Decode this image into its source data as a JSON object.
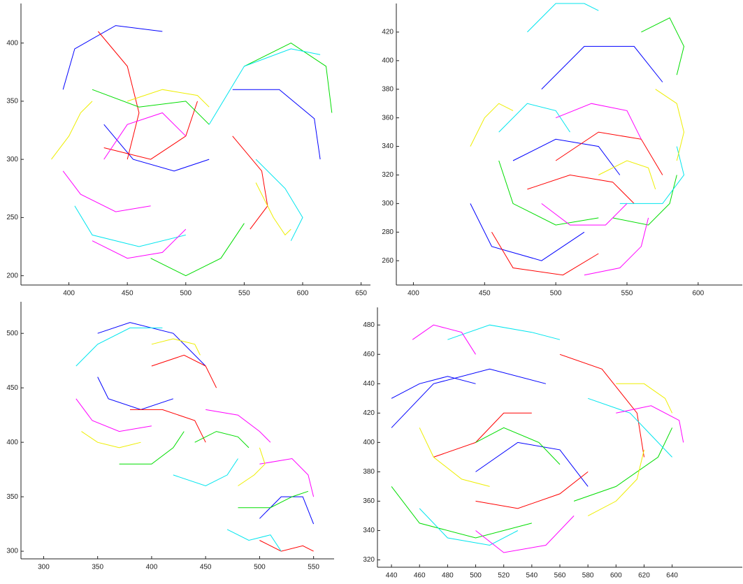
{
  "chart_data": [
    {
      "type": "line",
      "xlim": [
        359,
        658
      ],
      "ylim": [
        192,
        434
      ],
      "xticks": [
        400,
        450,
        500,
        550,
        600,
        650
      ],
      "yticks": [
        200,
        250,
        300,
        350,
        400
      ],
      "series": [
        {
          "color": "#0000ff",
          "x": [
            395,
            405,
            440,
            480,
            null,
            540,
            580,
            610,
            615,
            null,
            430,
            455,
            490,
            520
          ],
          "y": [
            360,
            395,
            415,
            410,
            null,
            360,
            360,
            335,
            300,
            null,
            330,
            300,
            290,
            300
          ]
        },
        {
          "color": "#ff0000",
          "x": [
            425,
            450,
            460,
            450,
            null,
            540,
            565,
            570,
            555,
            null,
            430,
            470,
            500,
            510
          ],
          "y": [
            410,
            380,
            340,
            300,
            null,
            320,
            290,
            260,
            240,
            null,
            310,
            300,
            320,
            350
          ]
        },
        {
          "color": "#00dd00",
          "x": [
            470,
            500,
            530,
            550,
            null,
            550,
            590,
            620,
            625,
            null,
            420,
            460,
            500,
            520
          ],
          "y": [
            215,
            200,
            215,
            245,
            null,
            380,
            400,
            380,
            340,
            null,
            360,
            345,
            350,
            330
          ]
        },
        {
          "color": "#00e5ee",
          "x": [
            405,
            420,
            460,
            500,
            null,
            520,
            550,
            590,
            615,
            null,
            560,
            585,
            600,
            590
          ],
          "y": [
            260,
            235,
            225,
            235,
            null,
            330,
            380,
            395,
            390,
            null,
            300,
            275,
            250,
            230
          ]
        },
        {
          "color": "#ff00ff",
          "x": [
            395,
            410,
            440,
            470,
            null,
            420,
            450,
            480,
            500,
            null,
            430,
            450,
            480,
            500
          ],
          "y": [
            290,
            270,
            255,
            260,
            null,
            230,
            215,
            220,
            240,
            null,
            300,
            330,
            340,
            320
          ]
        },
        {
          "color": "#eeee00",
          "x": [
            385,
            400,
            410,
            420,
            null,
            560,
            575,
            585,
            590,
            null,
            450,
            480,
            510,
            520
          ],
          "y": [
            300,
            320,
            340,
            350,
            null,
            280,
            250,
            235,
            240,
            null,
            350,
            360,
            355,
            345
          ]
        }
      ]
    },
    {
      "type": "line",
      "xlim": [
        388,
        631
      ],
      "ylim": [
        243,
        440
      ],
      "xticks": [
        400,
        450,
        500,
        550,
        600
      ],
      "yticks": [
        260,
        280,
        300,
        320,
        340,
        360,
        380,
        400,
        420
      ],
      "series": [
        {
          "color": "#0000ff",
          "x": [
            440,
            455,
            490,
            520,
            null,
            490,
            520,
            555,
            575,
            null,
            470,
            500,
            530,
            545
          ],
          "y": [
            300,
            270,
            260,
            280,
            null,
            380,
            410,
            410,
            385,
            null,
            330,
            345,
            340,
            320
          ]
        },
        {
          "color": "#ff0000",
          "x": [
            455,
            470,
            505,
            530,
            null,
            500,
            530,
            560,
            575,
            null,
            480,
            510,
            540,
            555
          ],
          "y": [
            280,
            255,
            250,
            265,
            null,
            330,
            350,
            345,
            320,
            null,
            310,
            320,
            315,
            300
          ]
        },
        {
          "color": "#00dd00",
          "x": [
            560,
            580,
            590,
            585,
            null,
            460,
            470,
            500,
            530,
            null,
            540,
            565,
            580,
            585
          ],
          "y": [
            420,
            430,
            410,
            390,
            null,
            330,
            300,
            285,
            290,
            null,
            290,
            285,
            300,
            320
          ]
        },
        {
          "color": "#00e5ee",
          "x": [
            480,
            500,
            520,
            530,
            null,
            545,
            575,
            590,
            585,
            null,
            460,
            480,
            500,
            510
          ],
          "y": [
            420,
            440,
            440,
            435,
            null,
            300,
            300,
            320,
            340,
            null,
            350,
            370,
            365,
            350
          ]
        },
        {
          "color": "#ff00ff",
          "x": [
            490,
            510,
            535,
            550,
            null,
            500,
            525,
            550,
            560,
            null,
            520,
            545,
            560,
            565
          ],
          "y": [
            300,
            285,
            285,
            300,
            null,
            360,
            370,
            365,
            345,
            null,
            250,
            255,
            270,
            290
          ]
        },
        {
          "color": "#eeee00",
          "x": [
            440,
            450,
            460,
            470,
            null,
            570,
            585,
            590,
            585,
            null,
            530,
            550,
            565,
            570
          ],
          "y": [
            340,
            360,
            370,
            365,
            null,
            380,
            370,
            350,
            330,
            null,
            320,
            330,
            325,
            310
          ]
        }
      ]
    },
    {
      "type": "line",
      "xlim": [
        279,
        569
      ],
      "ylim": [
        293,
        529
      ],
      "xticks": [
        300,
        350,
        400,
        450,
        500,
        550
      ],
      "yticks": [
        300,
        350,
        400,
        450,
        500
      ],
      "series": [
        {
          "color": "#0000ff",
          "x": [
            350,
            380,
            420,
            450,
            null,
            500,
            520,
            540,
            550,
            null,
            350,
            360,
            390,
            420
          ],
          "y": [
            500,
            510,
            500,
            470,
            null,
            330,
            350,
            350,
            325,
            null,
            460,
            440,
            430,
            440
          ]
        },
        {
          "color": "#ff0000",
          "x": [
            380,
            410,
            440,
            450,
            null,
            500,
            520,
            540,
            550,
            null,
            400,
            430,
            450,
            460
          ],
          "y": [
            430,
            430,
            420,
            400,
            null,
            310,
            300,
            305,
            300,
            null,
            470,
            480,
            470,
            450
          ]
        },
        {
          "color": "#00dd00",
          "x": [
            370,
            400,
            420,
            430,
            null,
            480,
            510,
            530,
            545,
            null,
            440,
            460,
            480,
            490
          ],
          "y": [
            380,
            380,
            395,
            410,
            null,
            340,
            340,
            350,
            355,
            null,
            400,
            410,
            405,
            395
          ]
        },
        {
          "color": "#00e5ee",
          "x": [
            330,
            350,
            380,
            410,
            null,
            470,
            490,
            510,
            520,
            null,
            420,
            450,
            470,
            480
          ],
          "y": [
            470,
            490,
            505,
            505,
            null,
            320,
            310,
            315,
            300,
            null,
            370,
            360,
            370,
            385
          ]
        },
        {
          "color": "#ff00ff",
          "x": [
            330,
            345,
            370,
            400,
            null,
            500,
            530,
            545,
            550,
            null,
            450,
            480,
            500,
            510
          ],
          "y": [
            440,
            420,
            410,
            415,
            null,
            380,
            385,
            370,
            350,
            null,
            430,
            425,
            410,
            400
          ]
        },
        {
          "color": "#eeee00",
          "x": [
            335,
            350,
            370,
            390,
            null,
            480,
            495,
            505,
            500,
            null,
            400,
            420,
            440,
            445
          ],
          "y": [
            410,
            400,
            395,
            400,
            null,
            360,
            370,
            380,
            395,
            null,
            490,
            495,
            490,
            480
          ]
        }
      ]
    },
    {
      "type": "line",
      "xlim": [
        430,
        690
      ],
      "ylim": [
        315,
        492
      ],
      "xticks": [
        440,
        460,
        480,
        500,
        520,
        540,
        560,
        580,
        600,
        620,
        640
      ],
      "yticks": [
        320,
        340,
        360,
        380,
        400,
        420,
        440,
        460,
        480
      ],
      "series": [
        {
          "color": "#0000ff",
          "x": [
            440,
            470,
            510,
            550,
            null,
            500,
            530,
            560,
            580,
            null,
            440,
            460,
            480,
            500
          ],
          "y": [
            410,
            440,
            450,
            440,
            null,
            380,
            400,
            395,
            370,
            null,
            430,
            440,
            445,
            440
          ]
        },
        {
          "color": "#ff0000",
          "x": [
            560,
            590,
            615,
            620,
            null,
            500,
            530,
            560,
            580,
            null,
            470,
            500,
            520,
            540
          ],
          "y": [
            460,
            450,
            420,
            390,
            null,
            360,
            355,
            365,
            380,
            null,
            390,
            400,
            420,
            420
          ]
        },
        {
          "color": "#00dd00",
          "x": [
            440,
            460,
            500,
            540,
            null,
            570,
            600,
            630,
            640,
            null,
            500,
            520,
            545,
            560
          ],
          "y": [
            370,
            345,
            335,
            345,
            null,
            360,
            370,
            390,
            410,
            null,
            400,
            410,
            400,
            385
          ]
        },
        {
          "color": "#00e5ee",
          "x": [
            460,
            480,
            510,
            530,
            null,
            480,
            510,
            540,
            560,
            null,
            580,
            610,
            630,
            640
          ],
          "y": [
            355,
            335,
            330,
            340,
            null,
            470,
            480,
            475,
            470,
            null,
            430,
            420,
            400,
            390
          ]
        },
        {
          "color": "#ff00ff",
          "x": [
            500,
            520,
            550,
            570,
            null,
            455,
            470,
            490,
            500,
            null,
            600,
            625,
            645,
            648
          ],
          "y": [
            340,
            325,
            330,
            350,
            null,
            470,
            480,
            475,
            460,
            null,
            420,
            425,
            415,
            400
          ]
        },
        {
          "color": "#eeee00",
          "x": [
            460,
            470,
            490,
            510,
            null,
            580,
            600,
            615,
            620,
            null,
            600,
            620,
            635,
            640
          ],
          "y": [
            410,
            390,
            375,
            370,
            null,
            350,
            360,
            375,
            395,
            null,
            440,
            440,
            430,
            420
          ]
        }
      ]
    }
  ]
}
